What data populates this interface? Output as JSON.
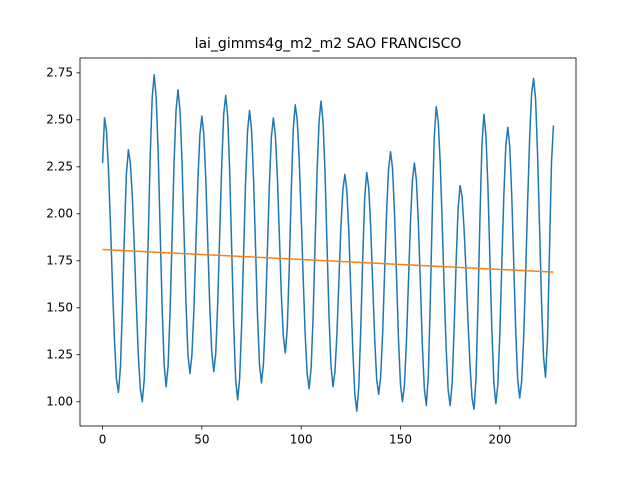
{
  "chart_data": {
    "type": "line",
    "title": "lai_gimms4g_m2_m2 SAO FRANCISCO",
    "xlim": [
      -11.35,
      238.35
    ],
    "xticks": [
      0,
      50,
      100,
      150,
      200
    ],
    "ylim": [
      0.871,
      2.829
    ],
    "yticks": [
      {
        "value": 1,
        "label": "1.00"
      },
      {
        "value": 1.25,
        "label": "1.25"
      },
      {
        "value": 1.5,
        "label": "1.50"
      },
      {
        "value": 1.75,
        "label": "1.75"
      },
      {
        "value": 2,
        "label": "2.00"
      },
      {
        "value": 2.25,
        "label": "2.25"
      },
      {
        "value": 2.5,
        "label": "2.50"
      },
      {
        "value": 2.75,
        "label": "2.75"
      }
    ],
    "series": [
      {
        "color": "#1f77b4",
        "x": [
          0,
          1,
          2,
          3,
          4,
          5,
          6,
          7,
          8,
          9,
          10,
          11,
          12,
          13,
          14,
          15,
          16,
          17,
          18,
          19,
          20,
          21,
          22,
          23,
          24,
          25,
          26,
          27,
          28,
          29,
          30,
          31,
          32,
          33,
          34,
          35,
          36,
          37,
          38,
          39,
          40,
          41,
          42,
          43,
          44,
          45,
          46,
          47,
          48,
          49,
          50,
          51,
          52,
          53,
          54,
          55,
          56,
          57,
          58,
          59,
          60,
          61,
          62,
          63,
          64,
          65,
          66,
          67,
          68,
          69,
          70,
          71,
          72,
          73,
          74,
          75,
          76,
          77,
          78,
          79,
          80,
          81,
          82,
          83,
          84,
          85,
          86,
          87,
          88,
          89,
          90,
          91,
          92,
          93,
          94,
          95,
          96,
          97,
          98,
          99,
          100,
          101,
          102,
          103,
          104,
          105,
          106,
          107,
          108,
          109,
          110,
          111,
          112,
          113,
          114,
          115,
          116,
          117,
          118,
          119,
          120,
          121,
          122,
          123,
          124,
          125,
          126,
          127,
          128,
          129,
          130,
          131,
          132,
          133,
          134,
          135,
          136,
          137,
          138,
          139,
          140,
          141,
          142,
          143,
          144,
          145,
          146,
          147,
          148,
          149,
          150,
          151,
          152,
          153,
          154,
          155,
          156,
          157,
          158,
          159,
          160,
          161,
          162,
          163,
          164,
          165,
          166,
          167,
          168,
          169,
          170,
          171,
          172,
          173,
          174,
          175,
          176,
          177,
          178,
          179,
          180,
          181,
          182,
          183,
          184,
          185,
          186,
          187,
          188,
          189,
          190,
          191,
          192,
          193,
          194,
          195,
          196,
          197,
          198,
          199,
          200,
          201,
          202,
          203,
          204,
          205,
          206,
          207,
          208,
          209,
          210,
          211,
          212,
          213,
          214,
          215,
          216,
          217,
          218,
          219,
          220,
          221,
          222,
          223,
          224,
          225,
          226,
          227
        ],
        "values": [
          2.27,
          2.51,
          2.44,
          2.23,
          1.94,
          1.62,
          1.33,
          1.12,
          1.05,
          1.18,
          1.5,
          1.89,
          2.21,
          2.34,
          2.27,
          2.09,
          1.82,
          1.52,
          1.25,
          1.07,
          1.0,
          1.12,
          1.44,
          1.87,
          2.31,
          2.62,
          2.74,
          2.62,
          2.33,
          1.91,
          1.5,
          1.2,
          1.08,
          1.19,
          1.48,
          1.87,
          2.27,
          2.55,
          2.66,
          2.55,
          2.28,
          1.91,
          1.53,
          1.25,
          1.15,
          1.25,
          1.49,
          1.84,
          2.18,
          2.42,
          2.52,
          2.42,
          2.18,
          1.84,
          1.5,
          1.26,
          1.16,
          1.26,
          1.53,
          1.9,
          2.26,
          2.53,
          2.63,
          2.52,
          2.23,
          1.82,
          1.42,
          1.12,
          1.01,
          1.12,
          1.4,
          1.78,
          2.17,
          2.44,
          2.55,
          2.45,
          2.19,
          1.83,
          1.46,
          1.2,
          1.1,
          1.2,
          1.45,
          1.81,
          2.16,
          2.41,
          2.51,
          2.42,
          2.2,
          1.89,
          1.57,
          1.35,
          1.26,
          1.39,
          1.72,
          2.12,
          2.45,
          2.58,
          2.5,
          2.29,
          1.99,
          1.66,
          1.36,
          1.15,
          1.07,
          1.18,
          1.45,
          1.84,
          2.22,
          2.49,
          2.6,
          2.49,
          2.22,
          1.84,
          1.46,
          1.19,
          1.08,
          1.16,
          1.36,
          1.65,
          1.93,
          2.13,
          2.21,
          2.12,
          1.9,
          1.58,
          1.27,
          1.04,
          0.95,
          1.08,
          1.39,
          1.77,
          2.09,
          2.22,
          2.14,
          1.93,
          1.63,
          1.34,
          1.12,
          1.04,
          1.13,
          1.36,
          1.69,
          2.01,
          2.24,
          2.33,
          2.24,
          2.0,
          1.67,
          1.33,
          1.09,
          1.0,
          1.09,
          1.32,
          1.64,
          1.95,
          2.18,
          2.27,
          2.18,
          1.95,
          1.63,
          1.3,
          1.07,
          0.98,
          1.14,
          1.54,
          2.01,
          2.41,
          2.57,
          2.49,
          2.27,
          1.95,
          1.6,
          1.28,
          1.06,
          0.98,
          1.1,
          1.39,
          1.74,
          2.03,
          2.15,
          2.09,
          1.92,
          1.69,
          1.42,
          1.19,
          1.02,
          0.96,
          1.12,
          1.51,
          1.98,
          2.37,
          2.53,
          2.42,
          2.15,
          1.76,
          1.38,
          1.1,
          0.99,
          1.09,
          1.36,
          1.73,
          2.09,
          2.36,
          2.46,
          2.36,
          2.1,
          1.74,
          1.38,
          1.12,
          1.02,
          1.11,
          1.34,
          1.68,
          2.06,
          2.4,
          2.64,
          2.72,
          2.61,
          2.32,
          1.93,
          1.53,
          1.24,
          1.13,
          1.33,
          1.8,
          2.27,
          2.47
        ]
      },
      {
        "color": "#ff7f0e",
        "x": [
          0,
          227
        ],
        "values": [
          1.81,
          1.69
        ]
      }
    ]
  }
}
